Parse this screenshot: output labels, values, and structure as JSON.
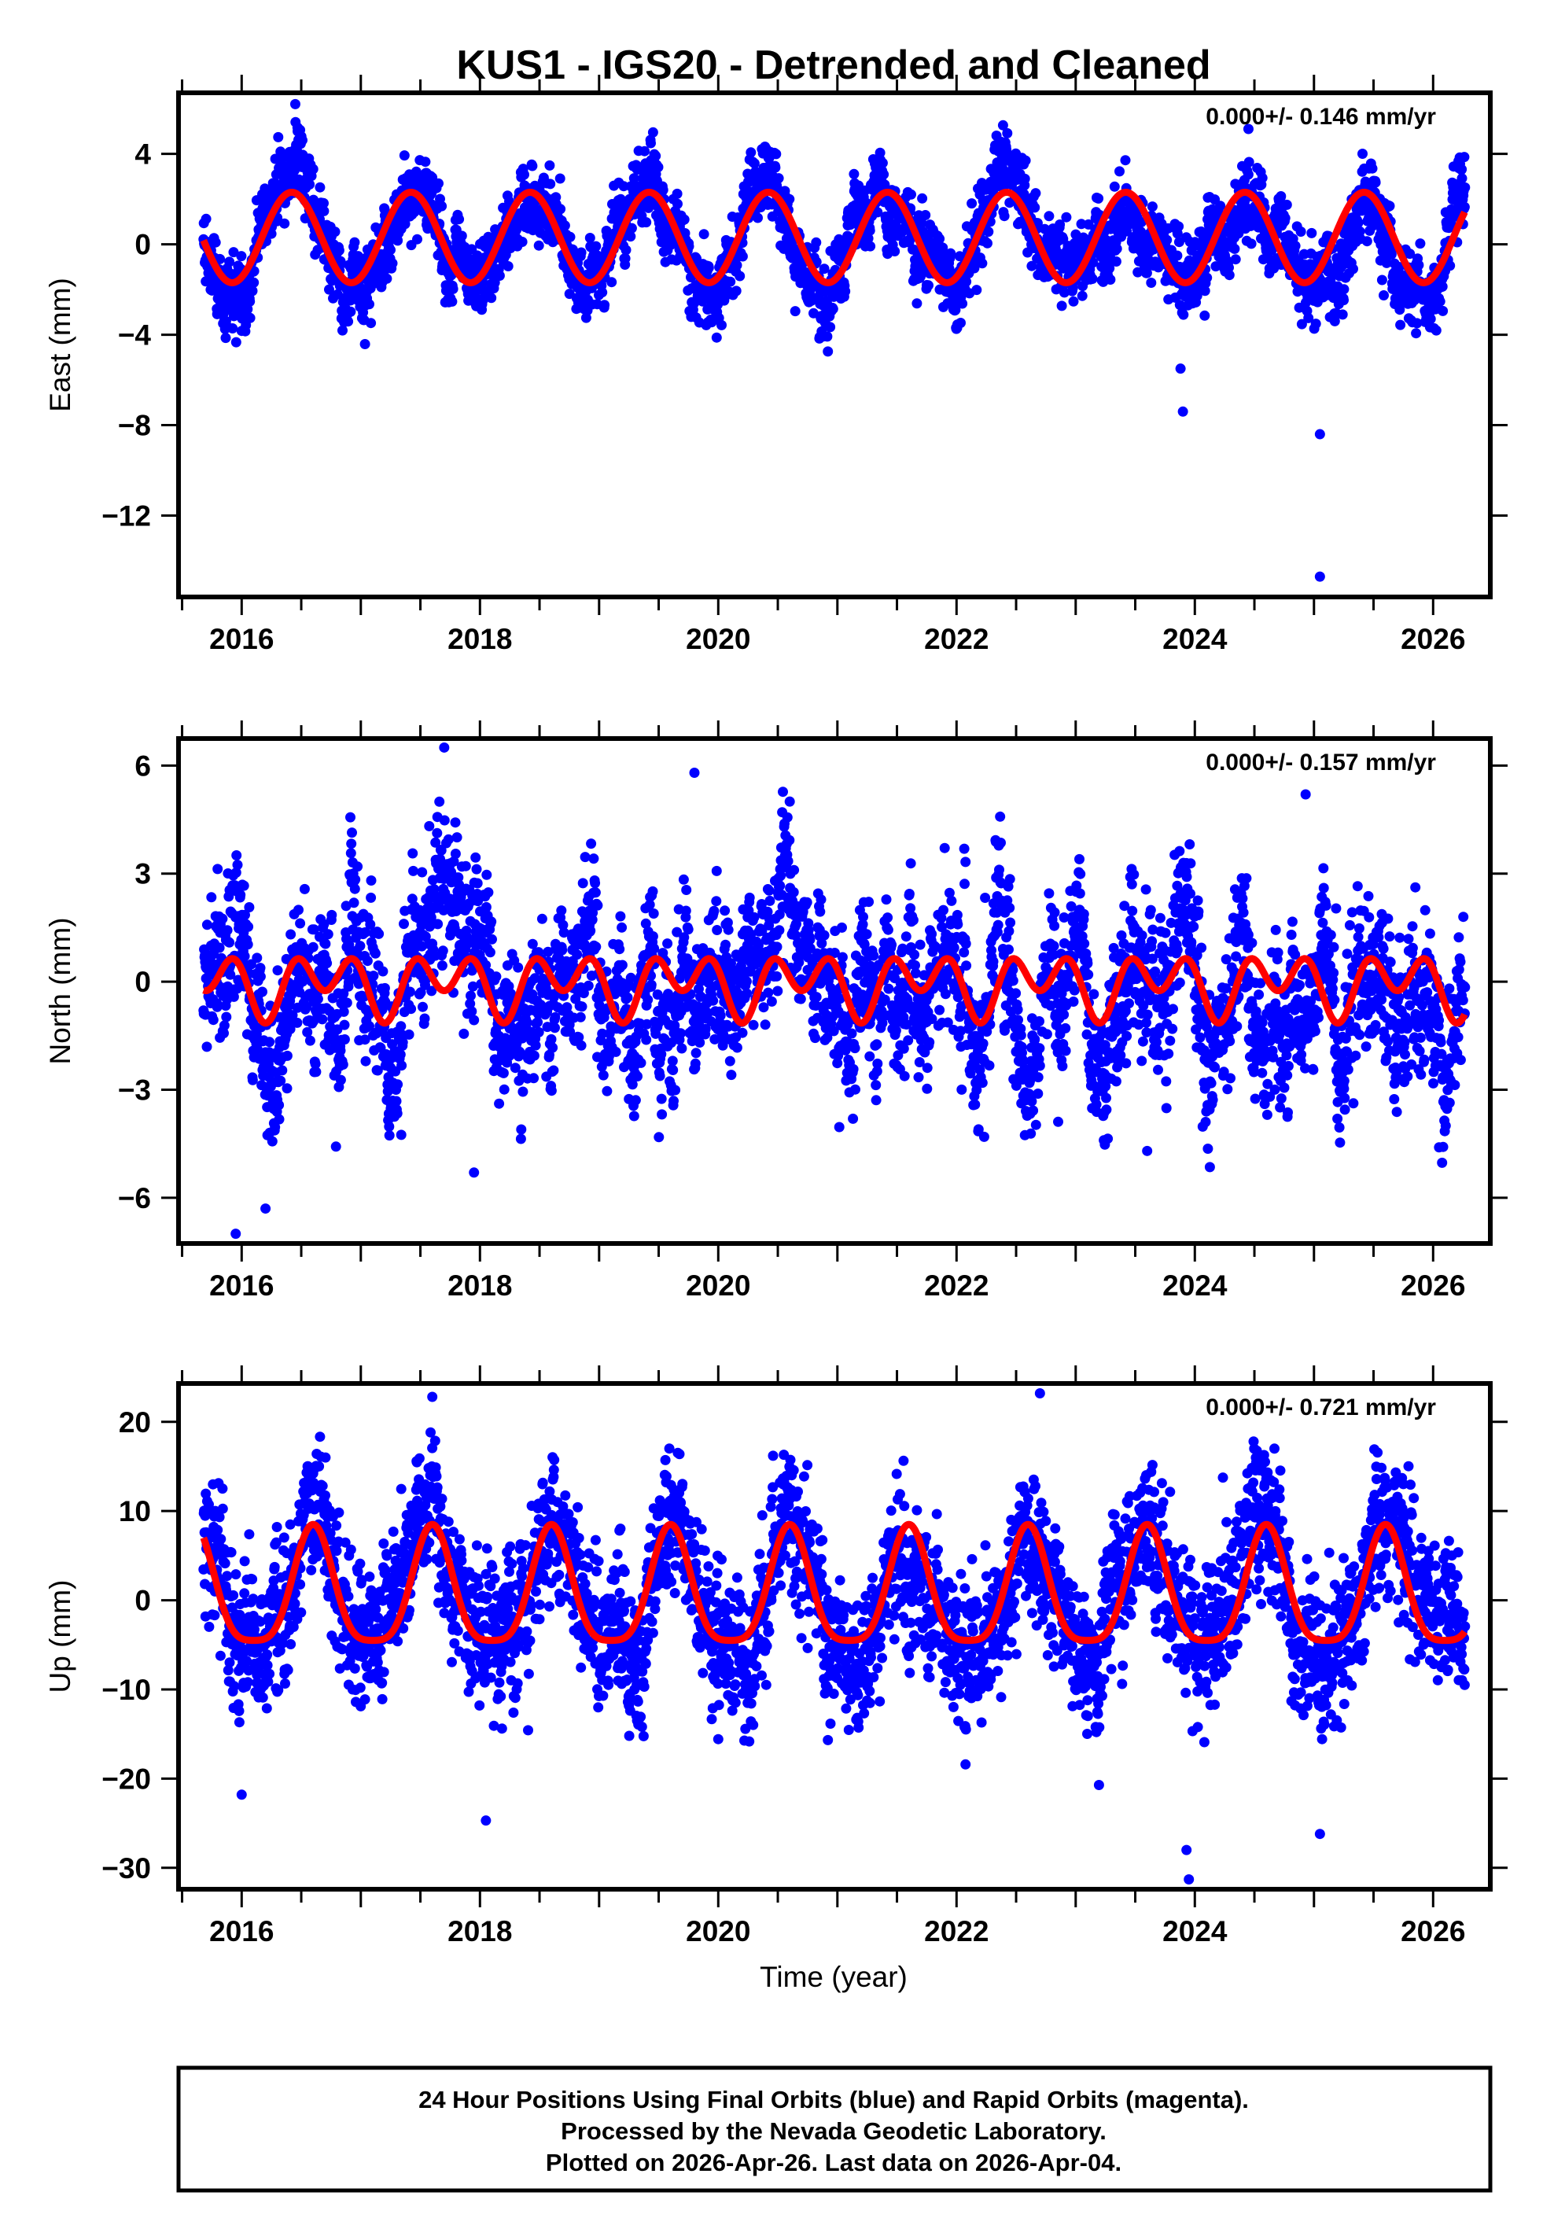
{
  "title": "KUS1 - IGS20 - Detrended and Cleaned",
  "xlabel": "Time (year)",
  "footer": [
    "24 Hour Positions Using Final Orbits (blue) and Rapid Orbits (magenta).",
    "Processed by the Nevada Geodetic Laboratory.",
    "Plotted on 2026-Apr-26. Last data on 2026-Apr-04."
  ],
  "colors": {
    "points": "#0000ff",
    "fit": "#ff0000",
    "frame": "#000000"
  },
  "chart_data": [
    {
      "type": "scatter",
      "name": "east",
      "ylabel": "East (mm)",
      "rate_label": "0.000+/- 0.146 mm/yr",
      "xlim": [
        2015.47,
        2026.48
      ],
      "ylim": [
        -15.6,
        6.7
      ],
      "xticks": [
        2016,
        2018,
        2020,
        2022,
        2024,
        2026
      ],
      "xtick_labels": [
        "2016",
        "2018",
        "2020",
        "2022",
        "2024",
        "2026"
      ],
      "yticks": [
        4,
        0,
        -4,
        -8,
        -12
      ],
      "ytick_labels": [
        "4",
        "0",
        "−4",
        "−8",
        "−12"
      ],
      "data_range": [
        2015.68,
        2026.27
      ],
      "fit": {
        "offset": 0.3,
        "annual_amp": 2.0,
        "annual_peak": 0.42,
        "semi_amp": 0.0,
        "semi_peak": 0.0
      },
      "noise_sigma": 0.75,
      "noise_correlated": 0.8,
      "outliers": [
        [
          2016.45,
          6.2
        ],
        [
          2016.47,
          5.0
        ],
        [
          2023.88,
          -5.5
        ],
        [
          2023.9,
          -7.4
        ],
        [
          2025.05,
          -8.4
        ],
        [
          2025.05,
          -14.7
        ],
        [
          2024.45,
          5.1
        ]
      ]
    },
    {
      "type": "scatter",
      "name": "north",
      "ylabel": "North (mm)",
      "rate_label": "0.000+/- 0.157 mm/yr",
      "xlim": [
        2015.47,
        2026.48
      ],
      "ylim": [
        -7.27,
        6.75
      ],
      "xticks": [
        2016,
        2018,
        2020,
        2022,
        2024,
        2026
      ],
      "xtick_labels": [
        "2016",
        "2018",
        "2020",
        "2022",
        "2024",
        "2026"
      ],
      "yticks": [
        6,
        3,
        0,
        -3,
        -6
      ],
      "ytick_labels": [
        "6",
        "3",
        "0",
        "−3",
        "−6"
      ],
      "data_range": [
        2015.68,
        2026.27
      ],
      "fit": {
        "offset": -0.05,
        "annual_amp": 0.45,
        "annual_peak": 0.7,
        "semi_amp": 0.65,
        "semi_peak": 0.45
      },
      "noise_sigma": 0.9,
      "noise_correlated": 1.3,
      "outliers": [
        [
          2017.7,
          6.5
        ],
        [
          2019.8,
          5.8
        ],
        [
          2020.6,
          5.0
        ],
        [
          2015.95,
          -7.0
        ],
        [
          2016.2,
          -6.3
        ],
        [
          2024.93,
          5.2
        ],
        [
          2017.95,
          -5.3
        ],
        [
          2023.6,
          -4.7
        ],
        [
          2026.05,
          -4.6
        ]
      ]
    },
    {
      "type": "scatter",
      "name": "up",
      "ylabel": "Up (mm)",
      "rate_label": "0.000+/- 0.721 mm/yr",
      "xlim": [
        2015.47,
        2026.48
      ],
      "ylim": [
        -32.4,
        24.3
      ],
      "xticks": [
        2016,
        2018,
        2020,
        2022,
        2024,
        2026
      ],
      "xtick_labels": [
        "2016",
        "2018",
        "2020",
        "2022",
        "2024",
        "2026"
      ],
      "yticks": [
        20,
        10,
        0,
        -10,
        -20,
        -30
      ],
      "ytick_labels": [
        "20",
        "10",
        "0",
        "−10",
        "−20",
        "−30"
      ],
      "data_range": [
        2015.68,
        2026.27
      ],
      "fit": {
        "offset": 0.5,
        "annual_amp": 6.5,
        "annual_peak": 0.6,
        "semi_amp": 1.5,
        "semi_peak": 0.6
      },
      "noise_sigma": 3.8,
      "noise_correlated": 2.5,
      "outliers": [
        [
          2017.6,
          22.8
        ],
        [
          2022.7,
          23.2
        ],
        [
          2023.95,
          -31.3
        ],
        [
          2023.93,
          -28.0
        ],
        [
          2018.05,
          -24.7
        ],
        [
          2025.05,
          -26.2
        ],
        [
          2016.0,
          -21.8
        ]
      ]
    }
  ]
}
